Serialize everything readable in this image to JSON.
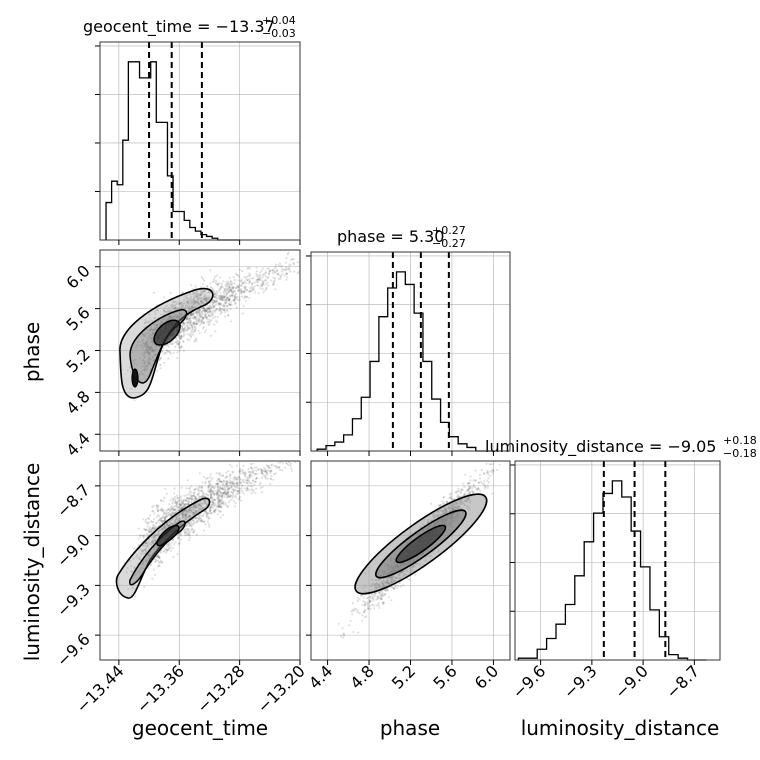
{
  "chart_data": {
    "type": "corner",
    "parameters": [
      "geocent_time",
      "phase",
      "luminosity_distance"
    ],
    "titles": {
      "geocent_time": {
        "label": "geocent_time = −13.37",
        "plus": "+0.04",
        "minus": "−0.03"
      },
      "phase": {
        "label": "phase = 5.30",
        "plus": "+0.27",
        "minus": "−0.27"
      },
      "luminosity_distance": {
        "label": "luminosity_distance = −9.05",
        "plus": "+0.18",
        "minus": "−0.18"
      }
    },
    "axes": {
      "geocent_time": {
        "lim": [
          -13.465,
          -13.2
        ],
        "ticks": [
          -13.44,
          -13.36,
          -13.28,
          -13.2
        ],
        "tick_labels": [
          "−13.44",
          "−13.36",
          "−13.28",
          "−13.20"
        ]
      },
      "phase": {
        "lim": [
          4.24,
          6.16
        ],
        "ticks": [
          4.4,
          4.8,
          5.2,
          5.6,
          6.0
        ],
        "tick_labels": [
          "4.4",
          "4.8",
          "5.2",
          "5.6",
          "6.0"
        ]
      },
      "luminosity_distance": {
        "lim": [
          -9.75,
          -8.55
        ],
        "ticks": [
          -9.6,
          -9.3,
          -9.0,
          -8.7
        ],
        "tick_labels": [
          "−9.6",
          "−9.3",
          "−9.0",
          "−8.7"
        ]
      }
    },
    "histograms": {
      "geocent_time": {
        "range": [
          -13.465,
          -13.2
        ],
        "counts": [
          0.21,
          0.33,
          0.31,
          0.56,
          1.0,
          1.0,
          0.91,
          0.91,
          1.0,
          0.66,
          0.66,
          0.36,
          0.16,
          0.16,
          0.11,
          0.07,
          0.05,
          0.03,
          0.02,
          0.01,
          0.0,
          0.0,
          0.0,
          0.0
        ],
        "bins_start": -13.457,
        "bin_width": 0.0074,
        "quantiles": [
          -13.4,
          -13.37,
          -13.33
        ]
      },
      "phase": {
        "range": [
          4.24,
          6.16
        ],
        "counts": [
          0.01,
          0.03,
          0.05,
          0.09,
          0.18,
          0.3,
          0.5,
          0.75,
          0.91,
          1.0,
          0.93,
          0.77,
          0.5,
          0.29,
          0.16,
          0.08,
          0.04,
          0.02,
          0.0,
          0.0
        ],
        "bins_start": 4.3,
        "bin_width": 0.085,
        "quantiles": [
          5.03,
          5.3,
          5.57
        ]
      },
      "luminosity_distance": {
        "range": [
          -9.75,
          -8.55
        ],
        "counts": [
          0.01,
          0.01,
          0.06,
          0.12,
          0.2,
          0.31,
          0.47,
          0.66,
          0.82,
          0.93,
          1.0,
          0.91,
          0.72,
          0.52,
          0.28,
          0.13,
          0.03,
          0.01,
          0.0,
          0.0
        ],
        "bins_start": -9.73,
        "bin_width": 0.055,
        "quantiles": [
          -9.23,
          -9.05,
          -8.87
        ]
      }
    },
    "scatter": {
      "phase_vs_geocent_time": {
        "x": "geocent_time",
        "y": "phase",
        "curve": {
          "t0": -13.418,
          "y0": 5.02,
          "span": 0.2,
          "y_span": 0.95,
          "exponent": 0.6
        }
      },
      "luminosity_distance_vs_geocent_time": {
        "x": "geocent_time",
        "y": "luminosity_distance",
        "curve": {
          "t0": -13.418,
          "y0": -9.2,
          "span": 0.2,
          "y_span": 0.64,
          "exponent": 0.6
        }
      },
      "luminosity_distance_vs_phase": {
        "x": "phase",
        "y": "luminosity_distance",
        "slope": 0.66,
        "intercept": -12.55
      }
    },
    "xlabels": [
      "geocent_time",
      "phase",
      "luminosity_distance"
    ],
    "ylabels": [
      "phase",
      "luminosity_distance"
    ],
    "grid": true,
    "colors": {
      "line": "#000000",
      "scatter": "#555555",
      "grid": "#b0b0b0"
    }
  }
}
